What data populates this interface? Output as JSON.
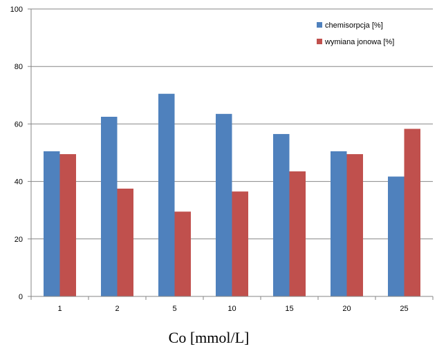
{
  "chart_data": {
    "type": "bar",
    "title": "",
    "xlabel": "Co [mmol/L]",
    "ylabel": "",
    "ylim": [
      0,
      100
    ],
    "yticks": [
      0,
      20,
      40,
      60,
      80,
      100
    ],
    "grid": "horizontal",
    "legend": "top-right",
    "categories": [
      "1",
      "2",
      "5",
      "10",
      "15",
      "20",
      "25"
    ],
    "series": [
      {
        "name": "chemisorpcja [%]",
        "color": "#4f81bd",
        "values": [
          50.5,
          62.5,
          70.5,
          63.5,
          56.5,
          50.5,
          41.7
        ]
      },
      {
        "name": "wymiana jonowa [%]",
        "color": "#c0504d",
        "values": [
          49.5,
          37.5,
          29.5,
          36.5,
          43.5,
          49.5,
          58.3
        ]
      }
    ]
  }
}
